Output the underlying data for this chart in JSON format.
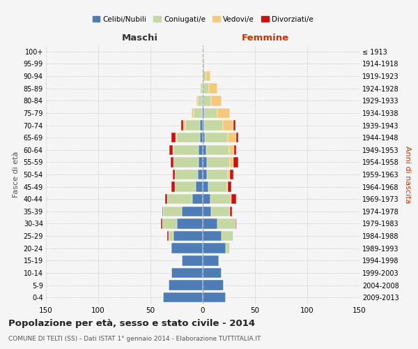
{
  "age_groups": [
    "0-4",
    "5-9",
    "10-14",
    "15-19",
    "20-24",
    "25-29",
    "30-34",
    "35-39",
    "40-44",
    "45-49",
    "50-54",
    "55-59",
    "60-64",
    "65-69",
    "70-74",
    "75-79",
    "80-84",
    "85-89",
    "90-94",
    "95-99",
    "100+"
  ],
  "birth_years": [
    "2009-2013",
    "2004-2008",
    "1999-2003",
    "1994-1998",
    "1989-1993",
    "1984-1988",
    "1979-1983",
    "1974-1978",
    "1969-1973",
    "1964-1968",
    "1959-1963",
    "1954-1958",
    "1949-1953",
    "1944-1948",
    "1939-1943",
    "1934-1938",
    "1929-1933",
    "1924-1928",
    "1919-1923",
    "1914-1918",
    "≤ 1913"
  ],
  "males": {
    "celibi": [
      38,
      33,
      30,
      20,
      30,
      28,
      25,
      20,
      10,
      7,
      5,
      4,
      4,
      3,
      3,
      1,
      1,
      0,
      0,
      0,
      0
    ],
    "coniugati": [
      0,
      0,
      0,
      0,
      1,
      5,
      14,
      18,
      24,
      20,
      22,
      24,
      24,
      22,
      14,
      8,
      4,
      2,
      1,
      0,
      0
    ],
    "vedovi": [
      0,
      0,
      0,
      0,
      0,
      0,
      0,
      0,
      0,
      0,
      0,
      0,
      1,
      1,
      2,
      2,
      1,
      1,
      0,
      0,
      0
    ],
    "divorziati": [
      0,
      0,
      0,
      0,
      0,
      1,
      1,
      1,
      2,
      3,
      2,
      3,
      3,
      4,
      2,
      0,
      0,
      0,
      0,
      0,
      0
    ]
  },
  "females": {
    "nubili": [
      22,
      20,
      18,
      15,
      22,
      18,
      14,
      8,
      7,
      5,
      4,
      4,
      3,
      2,
      1,
      1,
      0,
      0,
      0,
      0,
      0
    ],
    "coniugate": [
      0,
      0,
      0,
      1,
      4,
      11,
      17,
      18,
      20,
      18,
      20,
      22,
      22,
      22,
      18,
      13,
      8,
      6,
      3,
      1,
      0
    ],
    "vedove": [
      0,
      0,
      0,
      0,
      0,
      0,
      0,
      0,
      0,
      1,
      2,
      3,
      5,
      8,
      10,
      12,
      10,
      8,
      4,
      1,
      0
    ],
    "divorziate": [
      0,
      0,
      0,
      0,
      0,
      0,
      1,
      2,
      5,
      3,
      3,
      5,
      2,
      2,
      2,
      0,
      0,
      0,
      0,
      0,
      0
    ]
  },
  "colors": {
    "celibi": "#4e7db5",
    "coniugati": "#c5d8a4",
    "vedovi": "#f5c97a",
    "divorziati": "#cc1111"
  },
  "legend_labels": [
    "Celibi/Nubili",
    "Coniugati/e",
    "Vedovi/e",
    "Divorziati/e"
  ],
  "title": "Popolazione per età, sesso e stato civile - 2014",
  "subtitle": "COMUNE DI TELTI (SS) - Dati ISTAT 1° gennaio 2014 - Elaborazione TUTTITALIA.IT",
  "xlabel_left": "Maschi",
  "xlabel_right": "Femmine",
  "ylabel_left": "Fasce di età",
  "ylabel_right": "Anni di nascita",
  "xlim": 150,
  "background_color": "#f5f5f5",
  "grid_color": "#cccccc"
}
